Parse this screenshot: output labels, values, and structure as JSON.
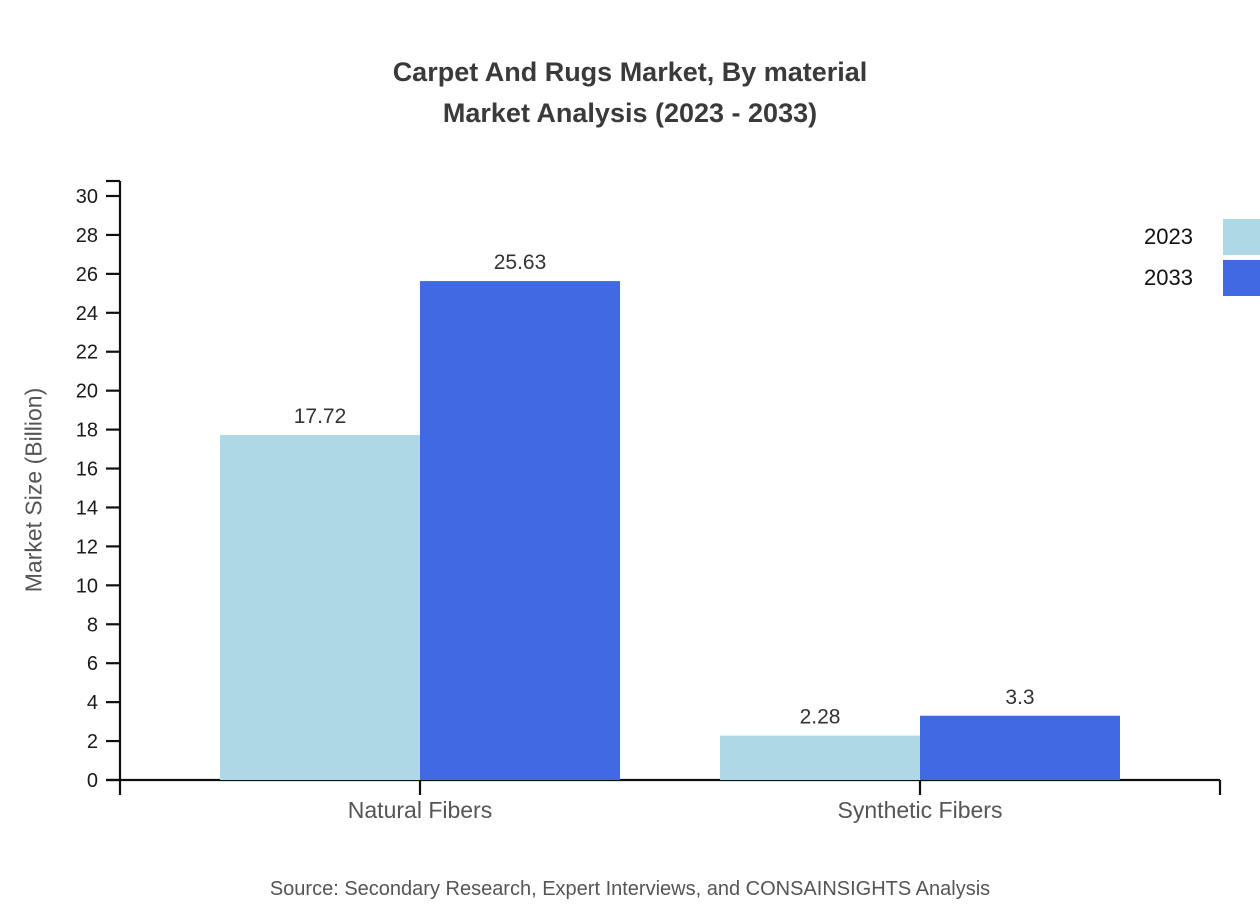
{
  "chart": {
    "title_line1": "Carpet And Rugs Market, By material",
    "title_line2": "Market Analysis (2023 - 2033)",
    "y_axis_label": "Market Size (Billion)",
    "source": "Source: Secondary Research, Expert Interviews, and CONSAINSIGHTS Analysis"
  },
  "legend": {
    "items": [
      {
        "label": "2023",
        "color": "#ADD8E6"
      },
      {
        "label": "2033",
        "color": "#4169E1"
      }
    ]
  },
  "chart_data": {
    "type": "bar",
    "title": "Carpet And Rugs Market, By material Market Analysis (2023 - 2033)",
    "categories": [
      "Natural Fibers",
      "Synthetic Fibers"
    ],
    "series": [
      {
        "name": "2023",
        "color": "#ADD8E6",
        "values": [
          17.72,
          2.28
        ]
      },
      {
        "name": "2033",
        "color": "#4169E1",
        "values": [
          25.63,
          3.3
        ]
      }
    ],
    "value_labels": [
      [
        "17.72",
        "2.28"
      ],
      [
        "25.63",
        "3.3"
      ]
    ],
    "xlabel": "",
    "ylabel": "Market Size (Billion)",
    "ylim": [
      0,
      30
    ],
    "ytick_step": 2,
    "grid": false,
    "legend_position": "top-right",
    "colors": {
      "axis": "#0f0f0f",
      "tick_label": "#1a1a1a",
      "value_label": "#333333",
      "category_label": "#555555"
    }
  }
}
